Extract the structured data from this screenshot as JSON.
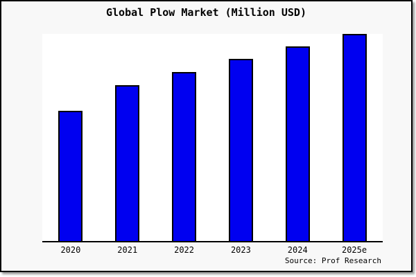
{
  "page": {
    "background_color": "#f8f8f8",
    "plot_background_color": "#ffffff",
    "border_color": "#000000"
  },
  "chart_data": {
    "type": "bar",
    "title": "Global Plow Market (Million USD)",
    "categories": [
      "2020",
      "2021",
      "2022",
      "2023",
      "2024",
      "2025e"
    ],
    "values": [
      62.9,
      75.3,
      81.6,
      88.0,
      94.0,
      100.0
    ],
    "values_note": "no y-axis, gridlines or data labels are shown; values are bar heights relative to the tallest bar (2025e = 100)",
    "xlabel": "",
    "ylabel": "",
    "ylim": [
      0,
      100
    ],
    "grid": false,
    "legend": "none",
    "bar_color": "#0000f0",
    "bar_edge_color": "#000000",
    "source": "Source: Prof Research"
  }
}
